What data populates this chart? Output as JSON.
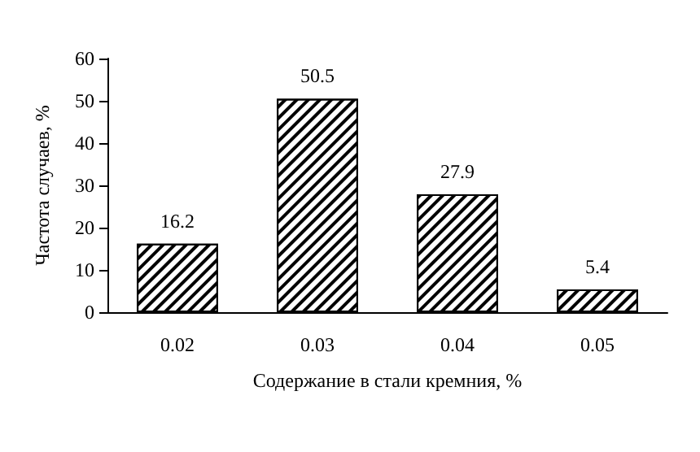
{
  "chart_data": {
    "type": "bar",
    "xlabel": "Содержание в стали кремния, %",
    "ylabel": "Частота случаев, %",
    "categories": [
      "0.02",
      "0.03",
      "0.04",
      "0.05"
    ],
    "values": [
      16.2,
      50.5,
      27.9,
      5.4
    ],
    "color": "#000000",
    "ylim": [
      0,
      60
    ],
    "yticks": [
      0,
      10,
      20,
      30,
      40,
      50,
      60
    ],
    "data_labels": true,
    "grid": false
  }
}
